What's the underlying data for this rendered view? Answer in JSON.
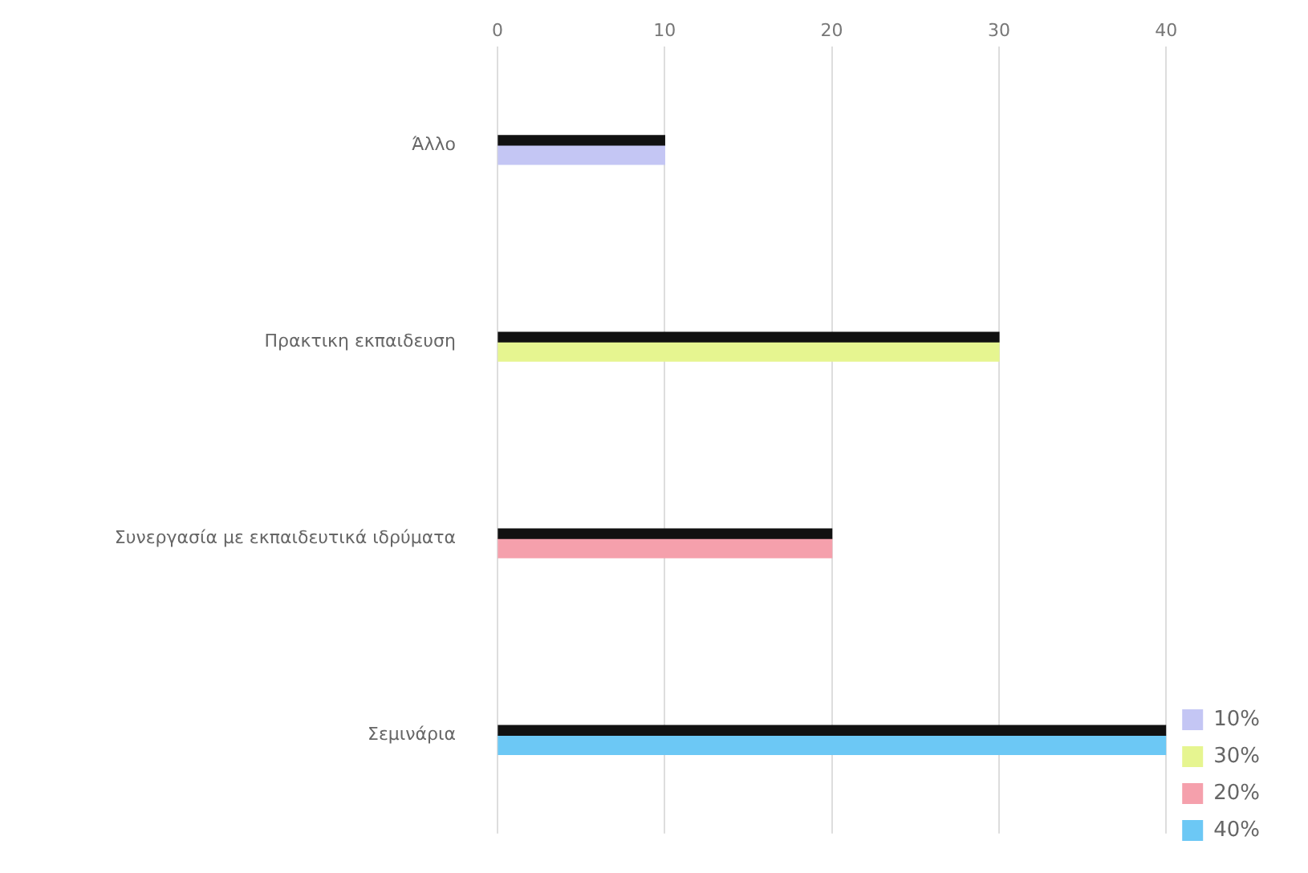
{
  "chart_data": {
    "type": "bar",
    "orientation": "horizontal",
    "categories": [
      "Άλλο",
      "Πρακτικη εκπαιδευση",
      "Συνεργασία με εκπαιδευτικά ιδρύματα",
      "Σεμινάρια"
    ],
    "series": [
      {
        "color": "#111111",
        "values": [
          10,
          30,
          20,
          40
        ]
      },
      {
        "name": "10%",
        "color": "#c4c6f4",
        "values": [
          10,
          null,
          null,
          null
        ]
      },
      {
        "name": "30%",
        "color": "#e6f590",
        "values": [
          null,
          30,
          null,
          null
        ]
      },
      {
        "name": "20%",
        "color": "#f5a0ac",
        "values": [
          null,
          null,
          20,
          null
        ]
      },
      {
        "name": "40%",
        "color": "#6cc8f5",
        "values": [
          null,
          null,
          null,
          40
        ]
      }
    ],
    "xlim": [
      0,
      40
    ],
    "xticks": [
      0,
      10,
      20,
      30,
      40
    ],
    "grid": "x",
    "legend": "bottom right"
  }
}
